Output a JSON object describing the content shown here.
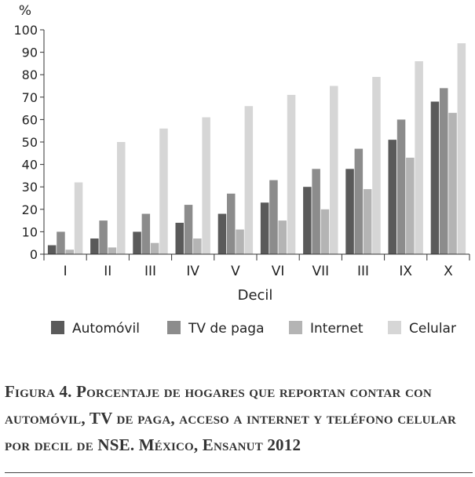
{
  "chart_data": {
    "type": "bar",
    "ylabel": "%",
    "xlabel": "Decil",
    "ylim": [
      0,
      100
    ],
    "yticks": [
      0,
      10,
      20,
      30,
      40,
      50,
      60,
      70,
      80,
      90,
      100
    ],
    "categories": [
      "I",
      "II",
      "III",
      "IV",
      "V",
      "VI",
      "VII",
      "III",
      "IX",
      "X"
    ],
    "series": [
      {
        "name": "Automóvil",
        "color": "#5a5a5a",
        "values": [
          4,
          7,
          10,
          14,
          18,
          23,
          30,
          38,
          51,
          68
        ]
      },
      {
        "name": "TV de paga",
        "color": "#8c8c8c",
        "values": [
          10,
          15,
          18,
          22,
          27,
          33,
          38,
          47,
          60,
          74
        ]
      },
      {
        "name": "Internet",
        "color": "#b4b4b4",
        "values": [
          2,
          3,
          5,
          7,
          11,
          15,
          20,
          29,
          43,
          63
        ]
      },
      {
        "name": "Celular",
        "color": "#d6d6d6",
        "values": [
          32,
          50,
          56,
          61,
          66,
          71,
          75,
          79,
          86,
          94
        ]
      }
    ],
    "legend": "bottom",
    "grid": false
  },
  "caption": "Figura 4. Porcentaje de hogares que reportan contar con automóvil, TV de paga, acceso a internet y teléfono celular por decil de NSE. México, Ensanut 2012"
}
